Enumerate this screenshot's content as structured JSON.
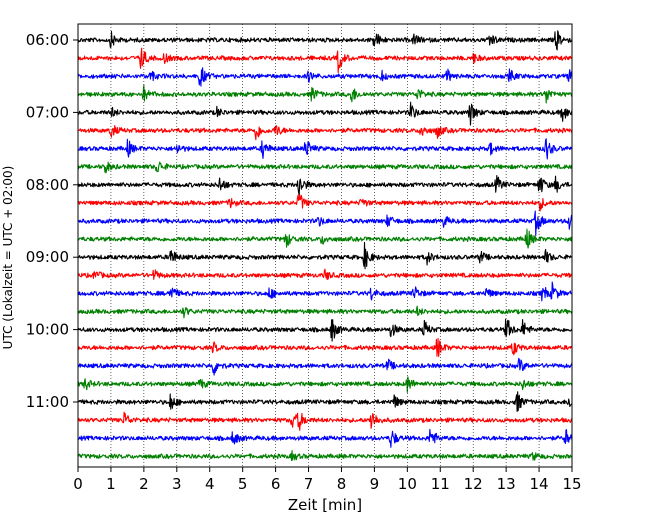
{
  "chart_data": {
    "type": "line",
    "xlabel": "Zeit  [min]",
    "ylabel": "UTC (Lokalzeit = UTC + 02:00)",
    "xlim": [
      0,
      15
    ],
    "x_ticks": [
      0,
      1,
      2,
      3,
      4,
      5,
      6,
      7,
      8,
      9,
      10,
      11,
      12,
      13,
      14,
      15
    ],
    "y_tick_labels": [
      "06:00",
      "07:00",
      "08:00",
      "09:00",
      "10:00",
      "11:00"
    ],
    "grid": "vertical dotted at each minute",
    "trace_interval_minutes": 15,
    "trace_colors": [
      "#000000",
      "#ff0000",
      "#0000ff",
      "#008000"
    ],
    "traces": [
      {
        "start": "06:00",
        "color": "#000000",
        "events": [
          [
            1.0,
            0.6
          ],
          [
            9.0,
            0.8
          ],
          [
            10.2,
            0.5
          ],
          [
            12.5,
            0.6
          ],
          [
            14.5,
            1.0
          ]
        ]
      },
      {
        "start": "06:15",
        "color": "#ff0000",
        "events": [
          [
            1.9,
            1.0
          ],
          [
            2.6,
            0.4
          ],
          [
            7.9,
            1.0
          ],
          [
            12.0,
            0.4
          ]
        ]
      },
      {
        "start": "06:30",
        "color": "#0000ff",
        "events": [
          [
            2.2,
            0.4
          ],
          [
            3.7,
            1.0
          ],
          [
            7.0,
            0.4
          ],
          [
            9.2,
            0.4
          ],
          [
            11.2,
            0.5
          ],
          [
            13.1,
            0.5
          ],
          [
            14.9,
            0.5
          ]
        ]
      },
      {
        "start": "06:45",
        "color": "#008000",
        "events": [
          [
            2.0,
            0.6
          ],
          [
            7.1,
            0.6
          ],
          [
            8.3,
            0.7
          ],
          [
            10.3,
            0.5
          ],
          [
            14.2,
            0.7
          ]
        ]
      },
      {
        "start": "07:00",
        "color": "#000000",
        "events": [
          [
            1.0,
            0.4
          ],
          [
            4.2,
            0.4
          ],
          [
            10.1,
            0.7
          ],
          [
            11.9,
            1.0
          ],
          [
            14.7,
            0.8
          ]
        ]
      },
      {
        "start": "07:15",
        "color": "#ff0000",
        "events": [
          [
            1.0,
            0.6
          ],
          [
            5.4,
            0.8
          ],
          [
            6.0,
            0.5
          ],
          [
            10.4,
            0.6
          ],
          [
            10.9,
            0.6
          ]
        ]
      },
      {
        "start": "07:30",
        "color": "#0000ff",
        "events": [
          [
            1.5,
            0.7
          ],
          [
            3.0,
            0.4
          ],
          [
            5.6,
            0.8
          ],
          [
            6.9,
            0.9
          ],
          [
            12.5,
            0.5
          ],
          [
            14.2,
            1.0
          ]
        ]
      },
      {
        "start": "07:45",
        "color": "#008000",
        "events": [
          [
            0.8,
            0.6
          ],
          [
            2.4,
            0.6
          ]
        ]
      },
      {
        "start": "08:00",
        "color": "#000000",
        "events": [
          [
            4.3,
            0.6
          ],
          [
            6.7,
            1.0
          ],
          [
            12.7,
            0.7
          ],
          [
            14.0,
            0.9
          ],
          [
            14.5,
            0.6
          ]
        ]
      },
      {
        "start": "08:15",
        "color": "#ff0000",
        "events": [
          [
            4.6,
            0.4
          ],
          [
            6.7,
            0.9
          ],
          [
            8.6,
            0.4
          ],
          [
            14.0,
            0.6
          ]
        ]
      },
      {
        "start": "08:30",
        "color": "#0000ff",
        "events": [
          [
            7.3,
            0.4
          ],
          [
            9.4,
            0.5
          ],
          [
            11.1,
            0.4
          ],
          [
            13.9,
            1.0
          ],
          [
            14.9,
            0.7
          ]
        ]
      },
      {
        "start": "08:45",
        "color": "#008000",
        "events": [
          [
            6.3,
            0.7
          ],
          [
            7.4,
            0.4
          ],
          [
            13.6,
            1.0
          ]
        ]
      },
      {
        "start": "09:00",
        "color": "#000000",
        "events": [
          [
            2.8,
            0.8
          ],
          [
            8.7,
            1.0
          ],
          [
            10.6,
            0.5
          ],
          [
            12.2,
            0.5
          ],
          [
            14.2,
            0.5
          ]
        ]
      },
      {
        "start": "09:15",
        "color": "#ff0000",
        "events": [
          [
            0.5,
            0.4
          ],
          [
            2.3,
            0.4
          ],
          [
            7.5,
            0.4
          ]
        ]
      },
      {
        "start": "09:30",
        "color": "#0000ff",
        "events": [
          [
            2.8,
            0.7
          ],
          [
            5.8,
            0.5
          ],
          [
            8.9,
            0.5
          ],
          [
            10.2,
            0.6
          ],
          [
            12.4,
            0.4
          ],
          [
            14.1,
            0.7
          ],
          [
            14.4,
            0.7
          ]
        ]
      },
      {
        "start": "09:45",
        "color": "#008000",
        "events": [
          [
            3.2,
            0.4
          ],
          [
            10.3,
            0.3
          ]
        ]
      },
      {
        "start": "10:00",
        "color": "#000000",
        "events": [
          [
            7.7,
            1.0
          ],
          [
            9.5,
            0.6
          ],
          [
            10.5,
            0.7
          ],
          [
            13.0,
            1.0
          ],
          [
            13.5,
            0.7
          ]
        ]
      },
      {
        "start": "10:15",
        "color": "#ff0000",
        "events": [
          [
            4.1,
            0.4
          ],
          [
            10.9,
            0.9
          ],
          [
            13.2,
            0.6
          ]
        ]
      },
      {
        "start": "10:30",
        "color": "#0000ff",
        "events": [
          [
            4.1,
            0.8
          ],
          [
            9.4,
            0.5
          ],
          [
            13.4,
            0.6
          ]
        ]
      },
      {
        "start": "10:45",
        "color": "#008000",
        "events": [
          [
            0.2,
            0.5
          ],
          [
            3.7,
            0.4
          ],
          [
            10.0,
            0.7
          ],
          [
            13.5,
            0.4
          ]
        ]
      },
      {
        "start": "11:00",
        "color": "#000000",
        "events": [
          [
            2.8,
            0.7
          ],
          [
            9.6,
            0.5
          ],
          [
            13.3,
            1.0
          ],
          [
            14.9,
            0.5
          ]
        ]
      },
      {
        "start": "11:15",
        "color": "#ff0000",
        "events": [
          [
            1.4,
            0.6
          ],
          [
            6.5,
            0.8
          ],
          [
            6.7,
            0.7
          ],
          [
            8.9,
            1.0
          ]
        ]
      },
      {
        "start": "11:30",
        "color": "#0000ff",
        "events": [
          [
            4.7,
            0.6
          ],
          [
            9.5,
            0.8
          ],
          [
            10.7,
            0.9
          ],
          [
            14.8,
            0.7
          ]
        ]
      },
      {
        "start": "11:45",
        "color": "#008000",
        "events": [
          [
            6.5,
            0.3
          ],
          [
            13.8,
            0.3
          ]
        ]
      }
    ]
  }
}
